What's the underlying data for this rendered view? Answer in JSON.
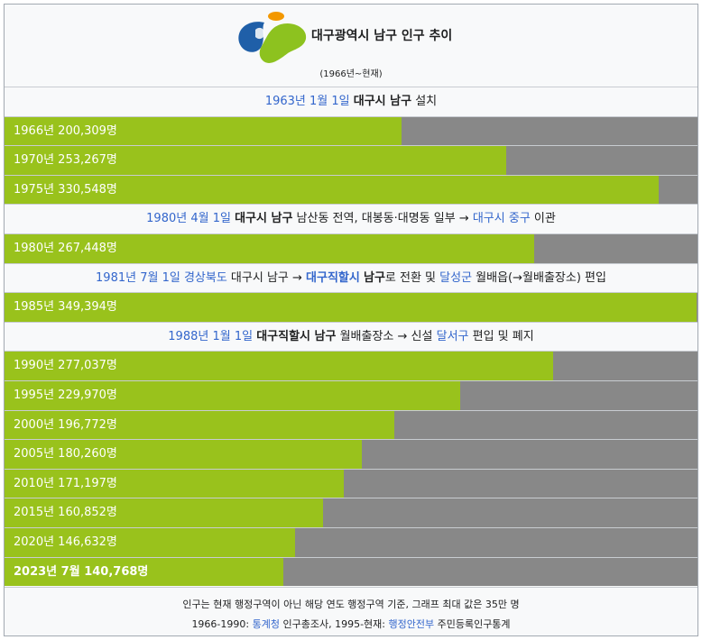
{
  "header": {
    "title": "대구광역시 남구 인구 추이",
    "subtitle": "(1966년~현재)",
    "logo_icon": "daegu-symbol-icon"
  },
  "colors": {
    "bar": "#99c21c",
    "track": "#888888",
    "link": "#3366cc",
    "logo_green": "#8dc21f",
    "logo_blue": "#1f5fa8",
    "logo_orange": "#f39800"
  },
  "chart_data": {
    "type": "bar",
    "orientation": "horizontal",
    "max": 350000,
    "rows": [
      {
        "kind": "event",
        "parts": [
          {
            "text": "1963년 1월 1일",
            "style": "link"
          },
          {
            "text": " ",
            "style": "plain"
          },
          {
            "text": "대구시 남구",
            "style": "bold"
          },
          {
            "text": " 설치",
            "style": "plain"
          }
        ]
      },
      {
        "kind": "bar",
        "label": "1966년 200,309명",
        "value": 200309
      },
      {
        "kind": "bar",
        "label": "1970년 253,267명",
        "value": 253267
      },
      {
        "kind": "bar",
        "label": "1975년 330,548명",
        "value": 330548
      },
      {
        "kind": "event",
        "parts": [
          {
            "text": "1980년 4월 1일",
            "style": "link"
          },
          {
            "text": " ",
            "style": "plain"
          },
          {
            "text": "대구시 남구",
            "style": "bold"
          },
          {
            "text": " 남산동 전역, 대봉동·대명동 일부 → ",
            "style": "plain"
          },
          {
            "text": "대구시 중구",
            "style": "link"
          },
          {
            "text": " 이관",
            "style": "plain"
          }
        ]
      },
      {
        "kind": "bar",
        "label": "1980년 267,448명",
        "value": 267448
      },
      {
        "kind": "event",
        "parts": [
          {
            "text": "1981년 7월 1일",
            "style": "link"
          },
          {
            "text": " ",
            "style": "plain"
          },
          {
            "text": "경상북도",
            "style": "link"
          },
          {
            "text": " 대구시 남구 → ",
            "style": "plain"
          },
          {
            "text": "대구직할시",
            "style": "boldlink"
          },
          {
            "text": " ",
            "style": "plain"
          },
          {
            "text": "남구",
            "style": "bold"
          },
          {
            "text": "로 전환 및 ",
            "style": "plain"
          },
          {
            "text": "달성군",
            "style": "link"
          },
          {
            "text": " 월배읍(→월배출장소) 편입",
            "style": "plain"
          }
        ]
      },
      {
        "kind": "bar",
        "label": "1985년 349,394명",
        "value": 349394
      },
      {
        "kind": "event",
        "parts": [
          {
            "text": "1988년 1월 1일",
            "style": "link"
          },
          {
            "text": " ",
            "style": "plain"
          },
          {
            "text": "대구직할시 남구",
            "style": "bold"
          },
          {
            "text": " 월배출장소 → 신설 ",
            "style": "plain"
          },
          {
            "text": "달서구",
            "style": "link"
          },
          {
            "text": " 편입 및 폐지",
            "style": "plain"
          }
        ]
      },
      {
        "kind": "bar",
        "label": "1990년 277,037명",
        "value": 277037
      },
      {
        "kind": "bar",
        "label": "1995년 229,970명",
        "value": 229970
      },
      {
        "kind": "bar",
        "label": "2000년 196,772명",
        "value": 196772
      },
      {
        "kind": "bar",
        "label": "2005년 180,260명",
        "value": 180260
      },
      {
        "kind": "bar",
        "label": "2010년 171,197명",
        "value": 171197
      },
      {
        "kind": "bar",
        "label": "2015년 160,852명",
        "value": 160852
      },
      {
        "kind": "bar",
        "label": "2020년 146,632명",
        "value": 146632
      },
      {
        "kind": "bar",
        "label": "2023년 7월 140,768명",
        "value": 140768,
        "bold": true
      }
    ]
  },
  "footer": {
    "note": "인구는 현재 행정구역이 아닌 해당 연도 행정구역 기준, 그래프 최대 값은 35만 명",
    "source_prefix": "1966-1990: ",
    "source_link1": "통계청",
    "source_mid": " 인구총조사, 1995-현재: ",
    "source_link2": "행정안전부",
    "source_suffix": " 주민등록인구통계"
  }
}
